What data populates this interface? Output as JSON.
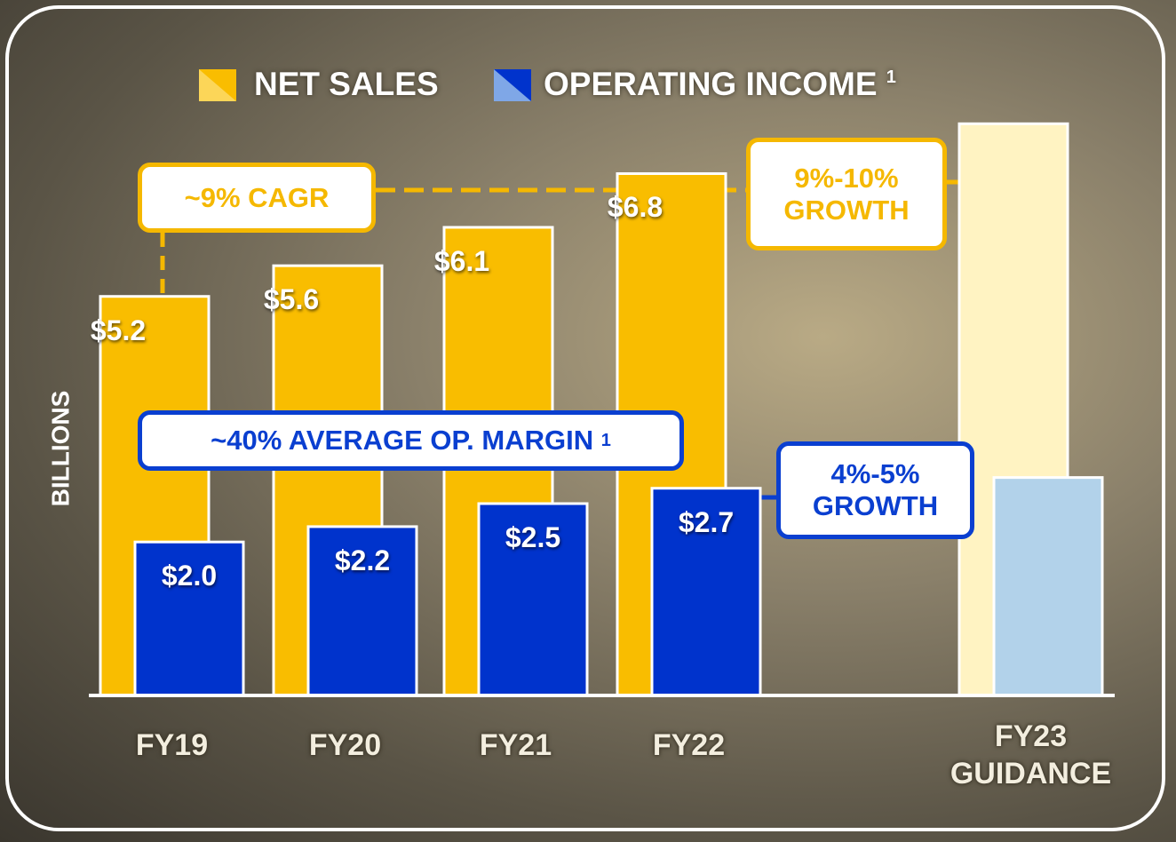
{
  "chart_data": {
    "type": "bar",
    "categories": [
      "FY19",
      "FY20",
      "FY21",
      "FY22",
      "FY23 GUIDANCE"
    ],
    "y_axis_label": "BILLIONS",
    "ylim": [
      0,
      7.5
    ],
    "series": [
      {
        "name": "NET SALES",
        "color": "#f9bd00",
        "colors": [
          "#f9bd00",
          "#f9bd00",
          "#f9bd00",
          "#f9bd00",
          "#fff3c2"
        ],
        "values": [
          5.2,
          5.6,
          6.1,
          6.8,
          7.45
        ],
        "value_labels": [
          "$5.2",
          "$5.6",
          "$6.1",
          "$6.8",
          null
        ]
      },
      {
        "name": "OPERATING INCOME",
        "footnote": "1",
        "color": "#0033cc",
        "colors": [
          "#0033cc",
          "#0033cc",
          "#0033cc",
          "#0033cc",
          "#b2d2ea"
        ],
        "values": [
          2.0,
          2.2,
          2.5,
          2.7,
          2.84
        ],
        "value_labels": [
          "$2.0",
          "$2.2",
          "$2.5",
          "$2.7",
          null
        ]
      }
    ],
    "annotations": [
      {
        "text": "~9% CAGR"
      },
      {
        "text": "9%-10% GROWTH"
      },
      {
        "text": "~40% AVERAGE OP. MARGIN",
        "footnote": "1"
      },
      {
        "text": "4%-5% GROWTH"
      }
    ]
  }
}
